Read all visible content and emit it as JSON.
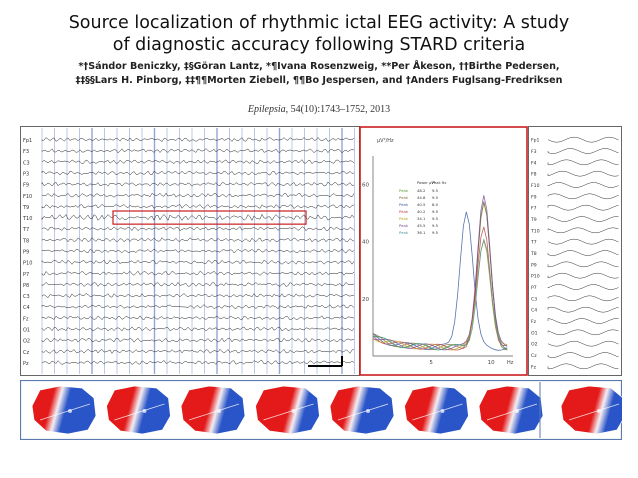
{
  "header": {
    "title_line1": "Source localization of rhythmic ictal EEG activity: A study",
    "title_line2": "of diagnostic accuracy following STARD criteria",
    "authors_line1": "*†Sándor Beniczky, ‡§Göran Lantz, *¶Ivana Rosenzweig, **Per Åkeson, ††Birthe Pedersen,",
    "authors_line2": "‡‡§§Lars H. Pinborg, ‡‡¶¶Morten Ziebell, ¶¶Bo Jespersen, and †Anders Fuglsang-Fredriksen",
    "journal": "Epilepsia",
    "citation_rest": ", 54(10):1743–1752, 2013"
  },
  "eeg": {
    "channels": [
      "Fp1",
      "F3",
      "C3",
      "P3",
      "F9",
      "F10",
      "T9",
      "T10",
      "T7",
      "T8",
      "P9",
      "P10",
      "P7",
      "P8",
      "C3",
      "C4",
      "Fz",
      "O1",
      "O2",
      "Cz",
      "Pz"
    ],
    "highlight_channel": "T10",
    "right_channels": [
      "Fp1",
      "F3",
      "F4",
      "F8",
      "F10",
      "F9",
      "F7",
      "T9",
      "T10",
      "T7",
      "T8",
      "P9",
      "P10",
      "P7",
      "C3",
      "C4",
      "Fz",
      "O1",
      "O2",
      "Cz",
      "Fz"
    ]
  },
  "spectrum": {
    "ylabel": "µV²/Hz",
    "xlabel": "Hz",
    "yticks": [
      "60",
      "40",
      "20"
    ],
    "xticks": [
      "5",
      "10"
    ],
    "table_headers": [
      "Power µV²",
      "Peak Hz"
    ],
    "table_rows": [
      {
        "label": "Peak",
        "power": "48.2",
        "peak": "9.5",
        "color": "#5aa02c"
      },
      {
        "label": "Peak",
        "power": "44.8",
        "peak": "9.5",
        "color": "#8a6d3b"
      },
      {
        "label": "Peak",
        "power": "40.5",
        "peak": "8.0",
        "color": "#3b5ba0"
      },
      {
        "label": "Peak",
        "power": "40.2",
        "peak": "9.5",
        "color": "#c04040"
      },
      {
        "label": "Peak",
        "power": "34.1",
        "peak": "9.5",
        "color": "#c0a020"
      },
      {
        "label": "Peak",
        "power": "45.5",
        "peak": "9.5",
        "color": "#7a4a9a"
      },
      {
        "label": "Peak",
        "power": "36.1",
        "peak": "9.5",
        "color": "#4a9a9a"
      }
    ]
  },
  "colors": {
    "accent_red": "#c81e1e",
    "eeg_grid": "#3c5ab4",
    "map_red": "#e41a1a",
    "map_blue": "#2a55c8"
  },
  "maps": {
    "count": 8
  }
}
